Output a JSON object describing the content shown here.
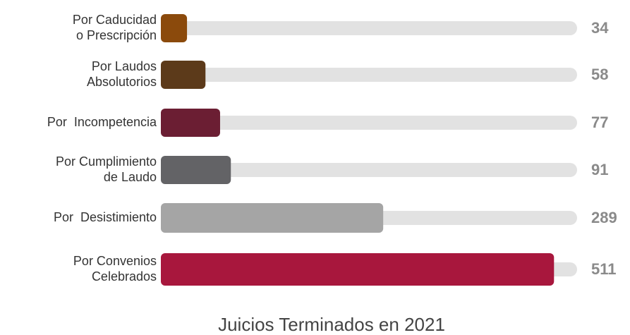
{
  "chart_data": {
    "type": "hbar",
    "title": "Juicios Terminados en 2021",
    "categories": [
      "Por Caducidad\no Prescripción",
      "Por Laudos\nAbsolutorios",
      "Por  Incompetencia",
      "Por Cumplimiento\nde Laudo",
      "Por  Desistimiento",
      "Por Convenios\nCelebrados"
    ],
    "values": [
      34,
      58,
      77,
      91,
      289,
      511
    ],
    "colors": [
      "#8b4a0c",
      "#5c3a1a",
      "#6b1e33",
      "#636366",
      "#a5a5a5",
      "#a8173d"
    ],
    "xlim": [
      0,
      541
    ]
  }
}
